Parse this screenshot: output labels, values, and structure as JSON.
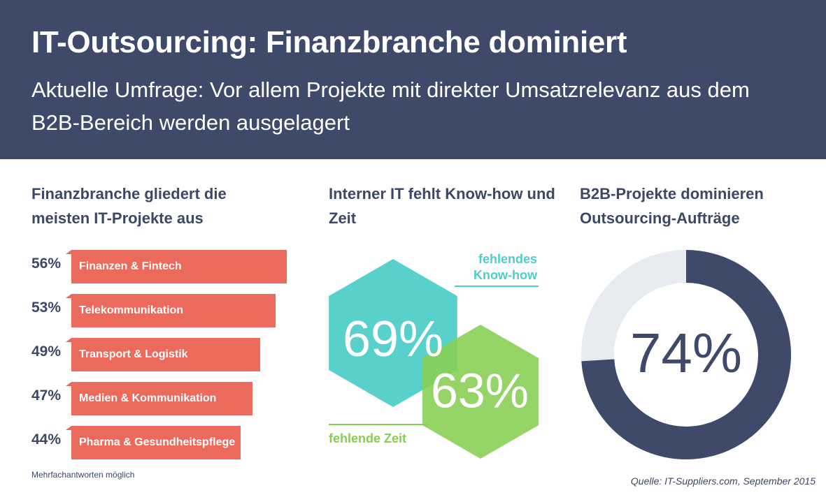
{
  "header": {
    "title": "IT-Outsourcing: Finanzbranche dominiert",
    "subtitle": "Aktuelle Umfrage: Vor allem Projekte mit direkter Umsatzrelevanz aus dem B2B-Bereich werden ausgelagert"
  },
  "colors": {
    "header_bg": "#3f4a6b",
    "bar": "#ec6a5b",
    "teal": "#4fcec8",
    "green": "#86cf52",
    "navy": "#3f4a6b",
    "ring_rest": "#e8ebf0"
  },
  "sections": {
    "bars_title": "Finanzbranche gliedert die meisten IT-Projekte aus",
    "hex_title": "Interner IT fehlt Know-how und Zeit",
    "donut_title": "B2B-Projekte dominieren Outsourcing-Aufträge"
  },
  "note": "Mehrfachantworten möglich",
  "source": "Quelle: IT-Suppliers.com, September 2015",
  "chart_data": [
    {
      "type": "bar",
      "orientation": "horizontal",
      "title": "Finanzbranche gliedert die meisten IT-Projekte aus",
      "categories": [
        "Finanzen & Fintech",
        "Telekommunikation",
        "Transport & Logistik",
        "Medien & Kommunikation",
        "Pharma & Gesundheitspflege"
      ],
      "values": [
        56,
        53,
        49,
        47,
        44
      ],
      "value_labels": [
        "56%",
        "53%",
        "49%",
        "47%",
        "44%"
      ],
      "unit": "%"
    },
    {
      "type": "other",
      "title": "Interner IT fehlt Know-how und Zeit",
      "items": [
        {
          "name": "fehlendes Know-how",
          "value": 69,
          "label": "69%"
        },
        {
          "name": "fehlende Zeit",
          "value": 63,
          "label": "63%"
        }
      ],
      "unit": "%"
    },
    {
      "type": "pie",
      "style": "donut",
      "title": "B2B-Projekte dominieren Outsourcing-Aufträge",
      "value": 74,
      "label": "74%",
      "unit": "%"
    }
  ]
}
